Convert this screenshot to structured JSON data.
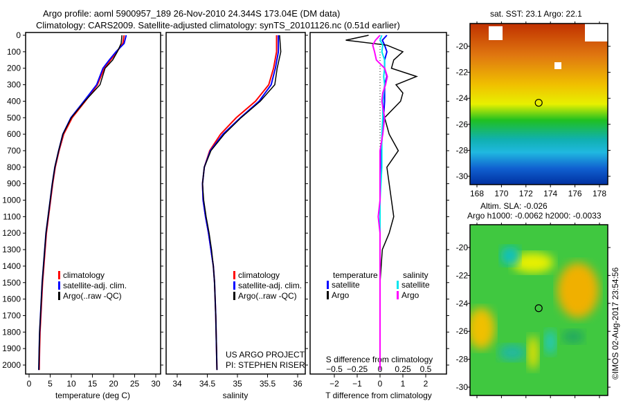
{
  "header": {
    "line1": "Argo profile: aoml 5900957_189 26-Nov-2010 24.344S 173.04E (DM data)",
    "line2": "Climatology: CARS2009. Satellite-adjusted climatology: synTS_20101126.nc (0.51d earlier)"
  },
  "credits": {
    "project": "US ARGO PROJECT",
    "pi": "PI: STEPHEN RISER",
    "imos": "©IMOS 02-Aug-2017 23:54:56"
  },
  "legend_profiles": [
    "climatology",
    "satellite-adj. clim.",
    "Argo(..raw -QC)"
  ],
  "legend_diff": {
    "temp_title": "temperature",
    "sal_title": "salinity",
    "satellite": "satellite",
    "argo": "Argo"
  },
  "colors": {
    "climatology": "#ff0000",
    "satellite": "#0000ff",
    "argo": "#000000",
    "sal_sat": "#00e5ee",
    "sal_argo": "#ff00ff"
  },
  "maps": {
    "sst_title": "sat. SST: 23.1 Argo: 22.1",
    "sla_title1": "Altim. SLA: -0.026",
    "sla_title2": "Argo h1000: -0.0062 h2000: -0.0033",
    "lon_ticks": [
      "168",
      "170",
      "172",
      "174",
      "176",
      "178"
    ],
    "lat_ticks": [
      "-20",
      "-22",
      "-24",
      "-26",
      "-28",
      "-30"
    ],
    "argo_position": {
      "lon": 173.04,
      "lat": -24.344
    }
  },
  "chart_data": [
    {
      "type": "line",
      "title": "temperature",
      "xlabel": "temperature (deg C)",
      "ylabel": "depth",
      "xlim": [
        -1,
        31
      ],
      "ylim": [
        2050,
        0
      ],
      "xticks": [
        "0",
        "5",
        "10",
        "15",
        "20",
        "25",
        "30"
      ],
      "yticks": [
        "0",
        "100",
        "200",
        "300",
        "400",
        "500",
        "600",
        "700",
        "800",
        "900",
        "1000",
        "1100",
        "1200",
        "1300",
        "1400",
        "1500",
        "1600",
        "1700",
        "1800",
        "1900",
        "2000"
      ],
      "depth": [
        0,
        50,
        100,
        150,
        200,
        300,
        400,
        500,
        600,
        700,
        800,
        900,
        1000,
        1100,
        1200,
        1300,
        1400,
        1500,
        1600,
        1700,
        1800,
        1900,
        2030
      ],
      "series": [
        {
          "name": "climatology",
          "values": [
            22.5,
            22.2,
            20.8,
            19.3,
            17.8,
            16.2,
            13.3,
            10.2,
            8.2,
            7.1,
            6.2,
            5.6,
            5.1,
            4.6,
            4.1,
            3.8,
            3.5,
            3.2,
            3.0,
            2.8,
            2.6,
            2.5,
            2.4
          ]
        },
        {
          "name": "satellite-adj. clim.",
          "values": [
            23.0,
            22.5,
            20.6,
            19.0,
            17.5,
            16.0,
            13.0,
            9.9,
            8.0,
            7.0,
            6.1,
            5.5,
            5.0,
            4.5,
            4.0,
            3.7,
            3.4,
            3.1,
            2.9,
            2.7,
            2.5,
            2.4,
            2.3
          ]
        },
        {
          "name": "Argo(..raw -QC)",
          "values": [
            22.0,
            21.8,
            20.9,
            19.8,
            18.0,
            16.8,
            13.2,
            10.0,
            8.0,
            7.0,
            6.1,
            5.5,
            5.0,
            4.5,
            4.0,
            3.7,
            3.4,
            3.1,
            2.9,
            2.7,
            2.5,
            2.4,
            2.3
          ]
        }
      ]
    },
    {
      "type": "line",
      "title": "salinity",
      "xlabel": "salinity",
      "ylabel": "depth",
      "xlim": [
        33.82,
        36.1
      ],
      "ylim": [
        2050,
        0
      ],
      "xticks": [
        "34",
        "34.5",
        "35",
        "35.5",
        "36"
      ],
      "depth": [
        0,
        100,
        200,
        300,
        400,
        500,
        600,
        700,
        800,
        900,
        1000,
        1100,
        1200,
        1300,
        1400,
        1500,
        1700,
        2030
      ],
      "series": [
        {
          "name": "climatology",
          "values": [
            35.65,
            35.65,
            35.6,
            35.52,
            35.3,
            34.98,
            34.72,
            34.54,
            34.45,
            34.42,
            34.43,
            34.47,
            34.52,
            34.56,
            34.6,
            34.62,
            34.64,
            34.66
          ]
        },
        {
          "name": "satellite-adj. clim.",
          "values": [
            35.68,
            35.68,
            35.63,
            35.56,
            35.36,
            35.05,
            34.76,
            34.55,
            34.45,
            34.42,
            34.43,
            34.47,
            34.52,
            34.56,
            34.6,
            34.62,
            34.64,
            34.66
          ]
        },
        {
          "name": "Argo(..raw -QC)",
          "values": [
            35.7,
            35.72,
            35.66,
            35.62,
            35.38,
            35.06,
            34.78,
            34.56,
            34.45,
            34.42,
            34.44,
            34.48,
            34.53,
            34.57,
            34.6,
            34.62,
            34.64,
            34.66
          ]
        }
      ]
    },
    {
      "type": "line",
      "title": "difference from climatology",
      "xlabel": "T difference from climatology",
      "xlabel_top": "S difference from climatology",
      "xlim": [
        -3,
        3
      ],
      "ylim": [
        2050,
        0
      ],
      "xticks": [
        "-2",
        "-1",
        "0",
        "1",
        "2"
      ],
      "xticks_top": [
        "-0.5",
        "-0.25",
        "0",
        "0.25",
        "0.5"
      ],
      "depth": [
        0,
        30,
        60,
        100,
        150,
        200,
        250,
        300,
        350,
        400,
        500,
        600,
        700,
        800,
        900,
        1000,
        1100,
        1200,
        1300,
        1500,
        2030
      ],
      "series": [
        {
          "name": "T satellite",
          "values": [
            0.3,
            0.1,
            0.2,
            0.3,
            0.2,
            0.2,
            0.3,
            0.2,
            0.2,
            0.2,
            0.15,
            0.1,
            0.05,
            0.05,
            0.0,
            0.0,
            0.0,
            0.0,
            0.0,
            0.0,
            0.0
          ]
        },
        {
          "name": "T Argo",
          "values": [
            -0.5,
            -1.5,
            0.3,
            1.0,
            0.6,
            0.5,
            1.6,
            0.7,
            1.0,
            0.9,
            0.2,
            0.4,
            0.8,
            0.3,
            0.4,
            0.5,
            0.6,
            0.4,
            0.1,
            0.0,
            0.0
          ]
        },
        {
          "name": "S satellite",
          "values": [
            0.02,
            0.0,
            0.03,
            0.02,
            0.05,
            0.05,
            0.04,
            0.05,
            0.04,
            0.03,
            0.03,
            0.02,
            0.02,
            0.02,
            0.01,
            0.0,
            0.0,
            0.0,
            0.0,
            0.0,
            0.0
          ]
        },
        {
          "name": "S Argo",
          "values": [
            0.0,
            -0.05,
            -0.08,
            -0.06,
            -0.04,
            0.05,
            0.08,
            0.06,
            0.03,
            0.02,
            0.05,
            0.03,
            0.0,
            0.0,
            0.0,
            0.0,
            -0.02,
            0.0,
            0.0,
            0.0,
            0.0
          ]
        }
      ]
    }
  ]
}
